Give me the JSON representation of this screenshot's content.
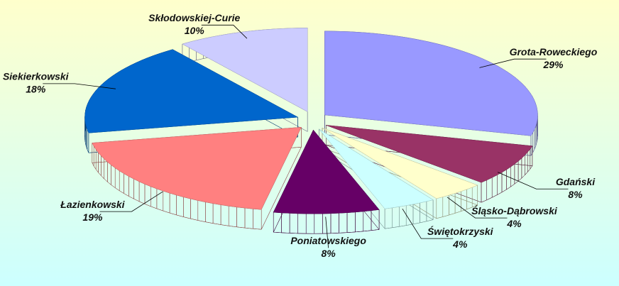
{
  "chart_data": {
    "type": "pie",
    "categories": [
      "Grota-Roweckiego",
      "Gdański",
      "Śląsko-Dąbrowski",
      "Świętokrzyski",
      "Poniatowskiego",
      "Łazienkowski",
      "Siekierkowski",
      "Skłodowskiej-Curie"
    ],
    "values": [
      29,
      8,
      4,
      4,
      8,
      19,
      18,
      10
    ],
    "value_labels": [
      "29%",
      "8%",
      "4%",
      "4%",
      "8%",
      "19%",
      "18%",
      "10%"
    ],
    "colors": [
      "#9999ff",
      "#993366",
      "#ffffcc",
      "#ccffff",
      "#660066",
      "#ff8080",
      "#0066cc",
      "#ccccff"
    ]
  }
}
